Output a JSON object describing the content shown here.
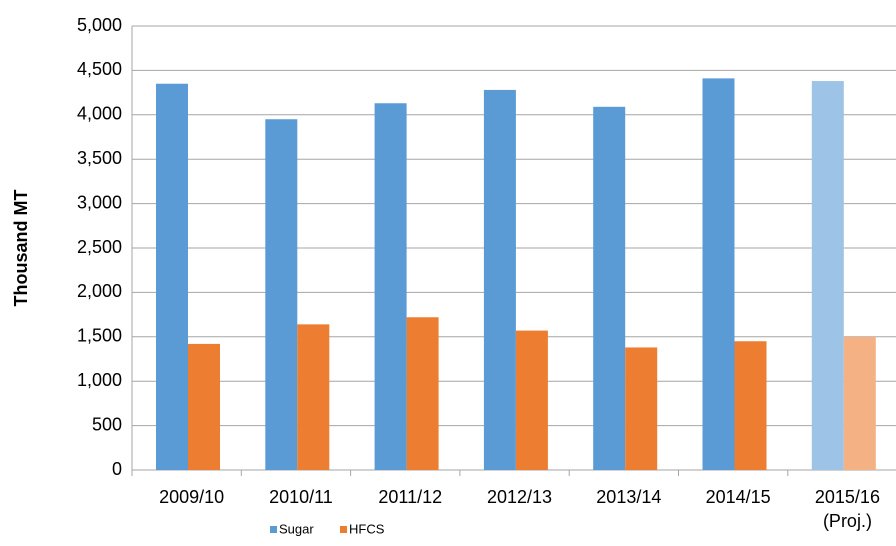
{
  "chart_data": {
    "type": "bar",
    "y_axis_label": "Thousand MT",
    "categories": [
      "2009/10",
      "2010/11",
      "2011/12",
      "2012/13",
      "2013/14",
      "2014/15",
      "2015/16\n(Proj.)"
    ],
    "series": [
      {
        "name": "Sugar",
        "color": "#5b9bd5",
        "bar_colors": [
          "#5b9bd5",
          "#5b9bd5",
          "#5b9bd5",
          "#5b9bd5",
          "#5b9bd5",
          "#5b9bd5",
          "#9dc3e6"
        ],
        "values": [
          4350,
          3950,
          4130,
          4280,
          4090,
          4410,
          4380
        ]
      },
      {
        "name": "HFCS",
        "color": "#ed7d31",
        "bar_colors": [
          "#ed7d31",
          "#ed7d31",
          "#ed7d31",
          "#ed7d31",
          "#ed7d31",
          "#ed7d31",
          "#f4b183"
        ],
        "values": [
          1420,
          1640,
          1720,
          1570,
          1380,
          1450,
          1500
        ]
      }
    ],
    "ylim": [
      0,
      5000
    ],
    "yticks": [
      0,
      500,
      {
        "value": 1000,
        "label": "1,000"
      },
      {
        "value": 1500,
        "label": "1,500"
      },
      {
        "value": 2000,
        "label": "2,000"
      },
      {
        "value": 2500,
        "label": "2,500"
      },
      {
        "value": 3000,
        "label": "3,000"
      },
      {
        "value": 3500,
        "label": "3,500"
      },
      {
        "value": 4000,
        "label": "4,000"
      },
      {
        "value": 4500,
        "label": "4,500"
      },
      {
        "value": 5000,
        "label": "5,000"
      }
    ],
    "grid": true,
    "legend": "bottom"
  }
}
